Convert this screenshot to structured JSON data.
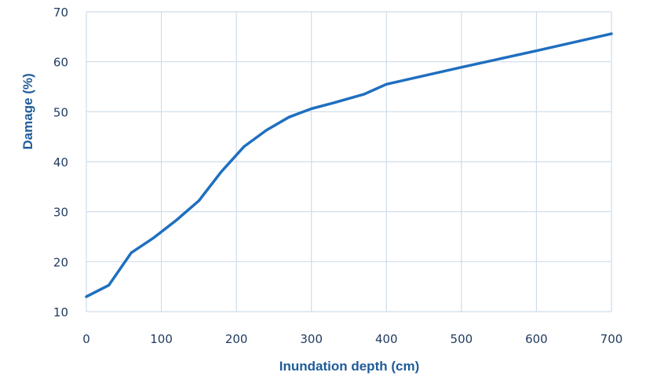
{
  "chart_data": {
    "type": "line",
    "title": "",
    "xlabel": "Inundation depth (cm)",
    "ylabel": "Damage (%)",
    "xlim": [
      0,
      700
    ],
    "ylim": [
      10,
      70
    ],
    "xticks": [
      "0",
      "100",
      "200",
      "300",
      "400",
      "500",
      "600",
      "700"
    ],
    "yticks": [
      "10",
      "20",
      "30",
      "40",
      "50",
      "60",
      "70"
    ],
    "grid": true,
    "line_color": "#1f6fbf",
    "grid_color": "#cfdcea",
    "series": [
      {
        "x": [
          0,
          30,
          60,
          90,
          120,
          150,
          180,
          210,
          240,
          270,
          300,
          330,
          370,
          400,
          500,
          600,
          700
        ],
        "y": [
          13,
          15.3,
          21.8,
          24.8,
          28.3,
          32.2,
          38,
          43,
          46.3,
          48.9,
          50.6,
          51.8,
          53.5,
          55.5,
          58.9,
          62.2,
          65.6
        ]
      }
    ]
  }
}
